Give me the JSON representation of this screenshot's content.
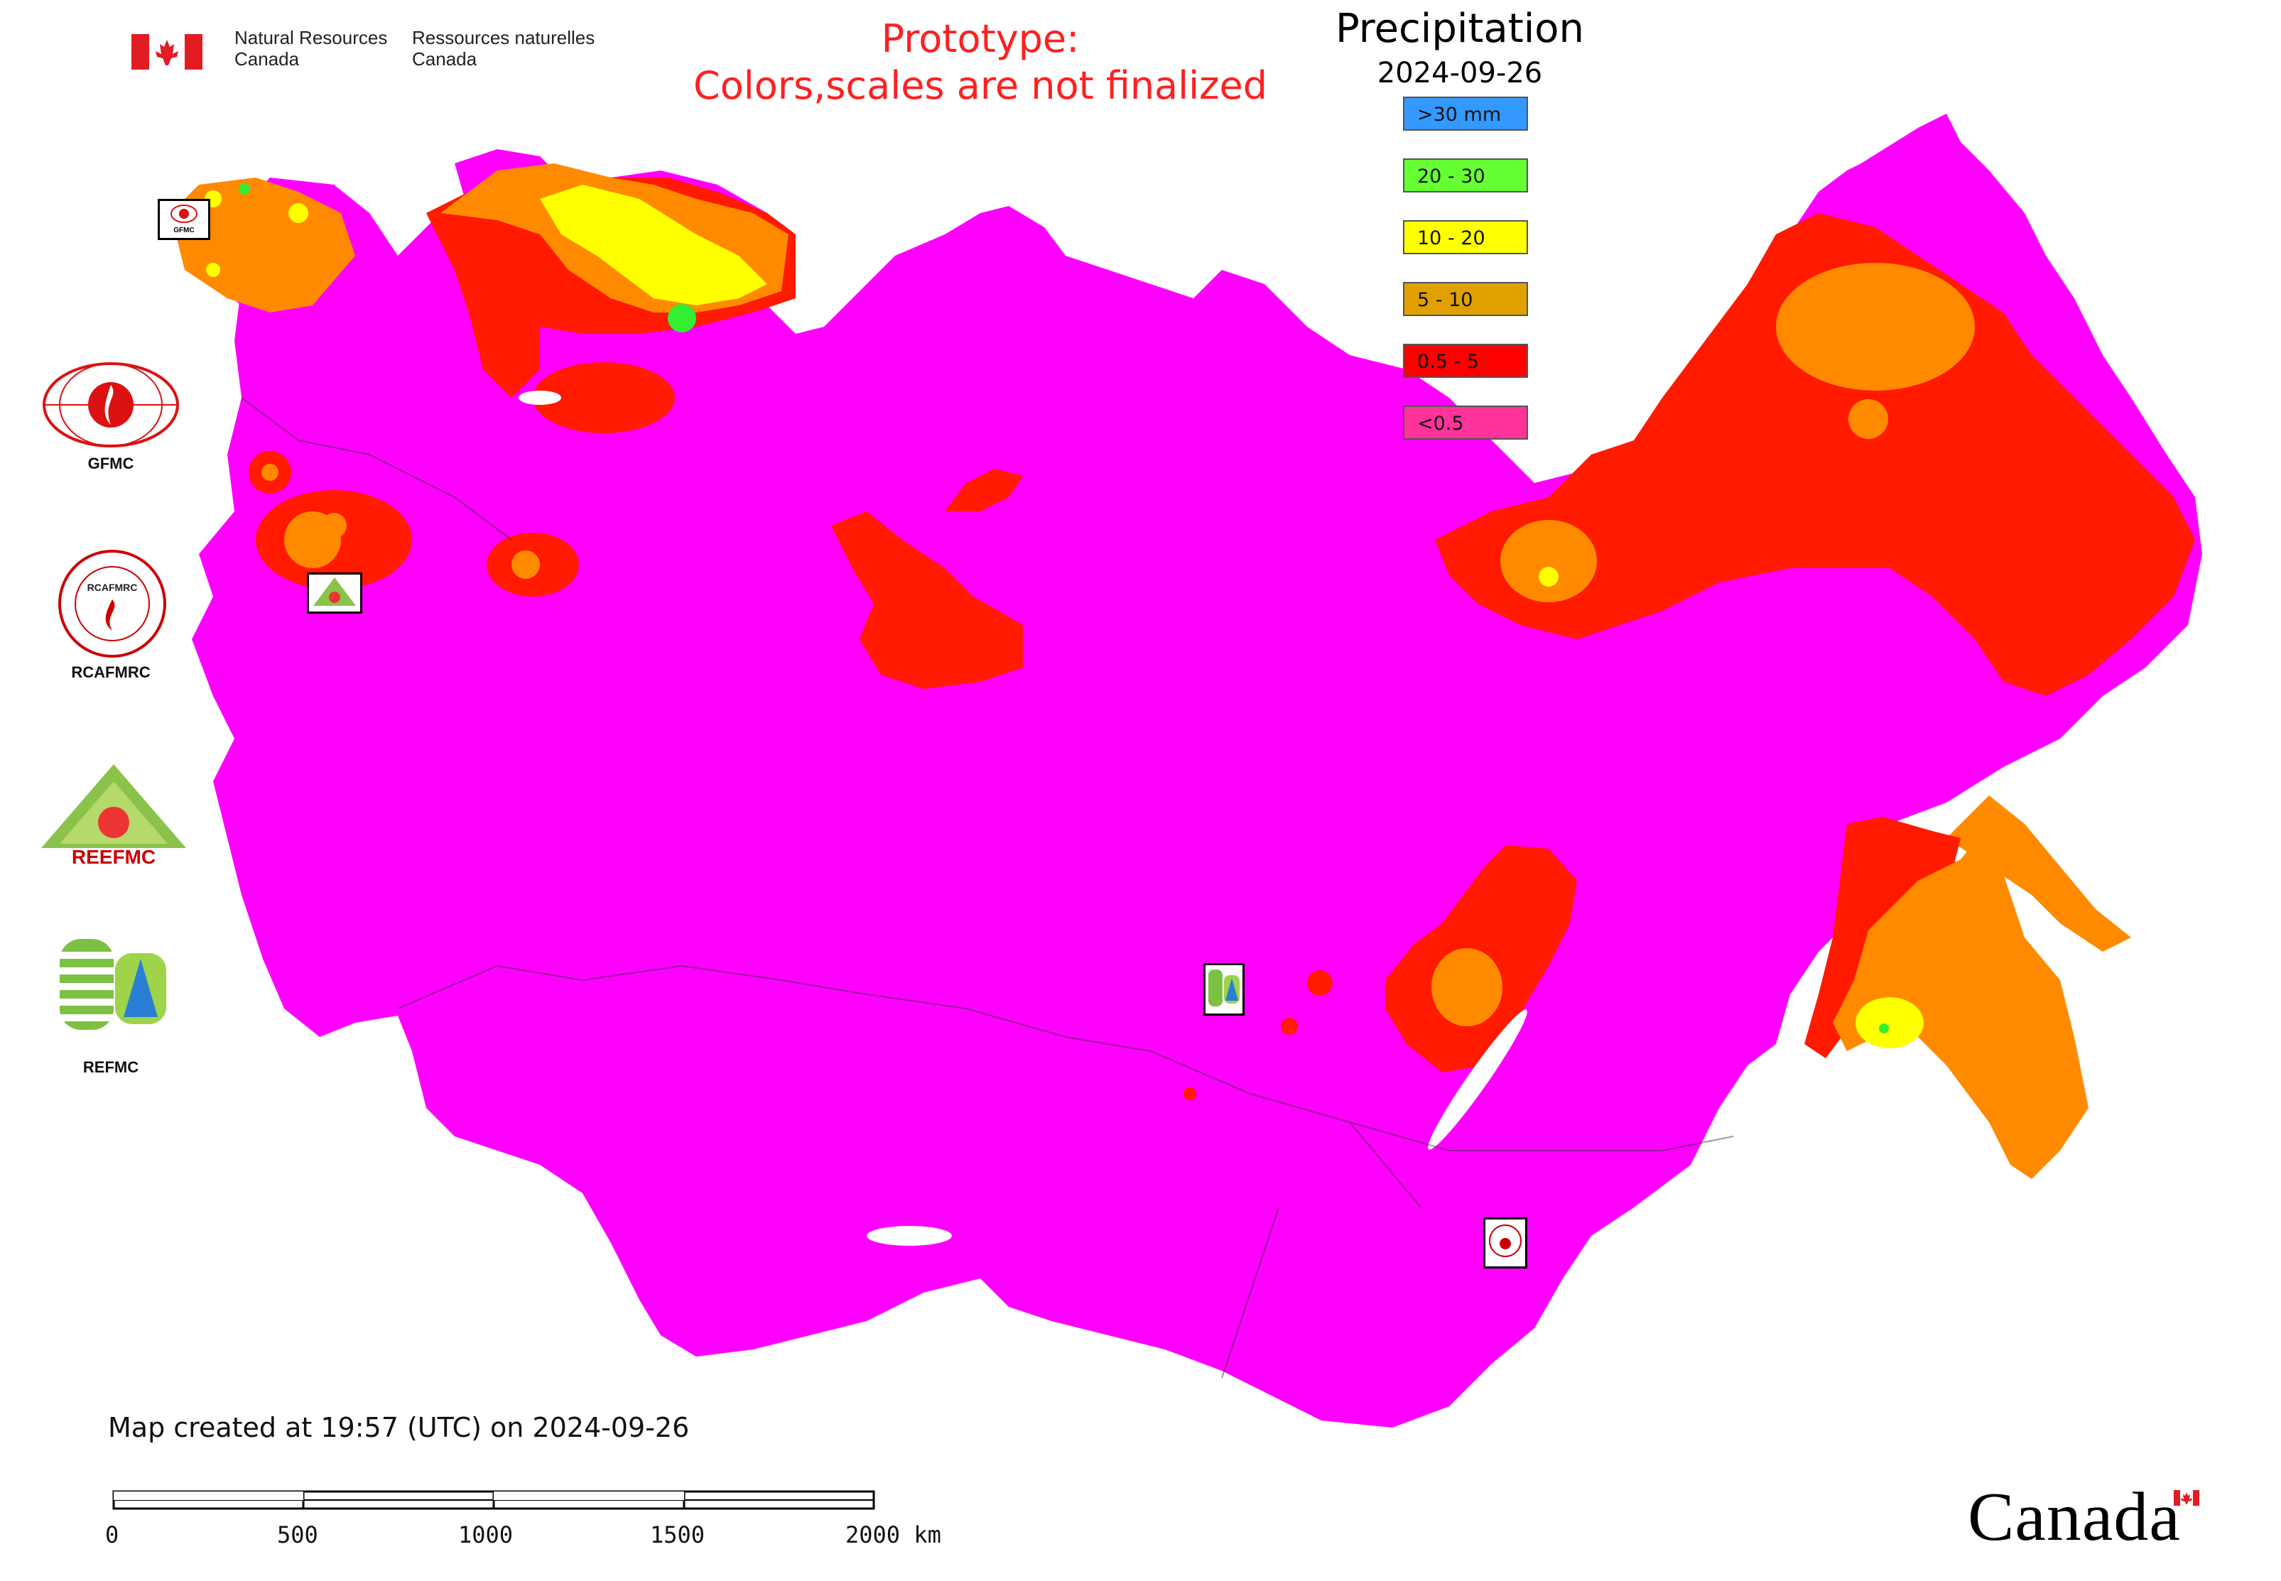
{
  "header": {
    "agency_en_line1": "Natural Resources",
    "agency_en_line2": "Canada",
    "agency_fr_line1": "Ressources naturelles",
    "agency_fr_line2": "Canada",
    "notice_line1": "Prototype:",
    "notice_line2": "Colors,scales are not finalized"
  },
  "legend": {
    "title": "Precipitation",
    "date": "2024-09-26",
    "items": [
      {
        "label": ">30 mm",
        "color": "#3399ff"
      },
      {
        "label": "20 - 30",
        "color": "#66ff33"
      },
      {
        "label": "10 - 20",
        "color": "#ffff00"
      },
      {
        "label": "5 - 10",
        "color": "#e0a000"
      },
      {
        "label": "0.5 - 5",
        "color": "#ff0000"
      },
      {
        "label": "<0.5",
        "color": "#ff3399"
      }
    ]
  },
  "map_colors": {
    "base": "#ff00ff",
    "red": "#ff1a00",
    "orange": "#ff8a00",
    "yellow": "#ffff00",
    "green": "#33ee33"
  },
  "logos": {
    "gfmc": "GFMC",
    "rcafmrc": "RCAFMRC",
    "rcafmrc_inner": "RCAFMRC",
    "reefmc": "REEFMC",
    "refmc": "REFMC",
    "gfmc_small": "GFMC"
  },
  "footer": {
    "created": "Map created at 19:57 (UTC) on 2024-09-26",
    "scale_labels": [
      "0",
      "500",
      "1000",
      "1500",
      "2000 km"
    ],
    "wordmark": "Canada"
  }
}
